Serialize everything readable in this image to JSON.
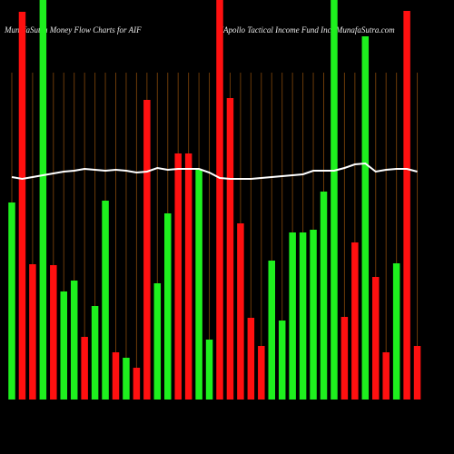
{
  "chart_data": {
    "type": "bar",
    "title": "MunafaSutra  Money Flow  Charts for AIF",
    "subtitle": "(Apollo  Tactical Income  Fund Inc) MunafaSutra.com",
    "categories": [
      null,
      null,
      null,
      null,
      null,
      null,
      null,
      null,
      null,
      null,
      null,
      null,
      null,
      null,
      null,
      null,
      null,
      null,
      null,
      null,
      null,
      null,
      null,
      null,
      null,
      null,
      null,
      null,
      null,
      null,
      null,
      null,
      null,
      null,
      null,
      null,
      null,
      null,
      null,
      null
    ],
    "values": [
      217,
      427,
      149,
      440,
      148,
      119,
      131,
      69,
      103,
      219,
      52,
      46,
      35,
      330,
      128,
      205,
      271,
      271,
      253,
      66,
      440,
      332,
      194,
      90,
      59,
      153,
      87,
      184,
      184,
      187,
      229,
      440,
      91,
      173,
      400,
      135,
      52,
      150,
      428,
      59
    ],
    "colors": [
      "#1ef01e",
      "#ff1010",
      "#ff1010",
      "#1ef01e",
      "#ff1010",
      "#1ef01e",
      "#1ef01e",
      "#ff1010",
      "#1ef01e",
      "#1ef01e",
      "#ff1010",
      "#1ef01e",
      "#ff1010",
      "#ff1010",
      "#1ef01e",
      "#1ef01e",
      "#ff1010",
      "#ff1010",
      "#1ef01e",
      "#1ef01e",
      "#ff1010",
      "#ff1010",
      "#ff1010",
      "#ff1010",
      "#ff1010",
      "#1ef01e",
      "#1ef01e",
      "#1ef01e",
      "#1ef01e",
      "#1ef01e",
      "#1ef01e",
      "#1ef01e",
      "#ff1010",
      "#ff1010",
      "#1ef01e",
      "#ff1010",
      "#ff1010",
      "#1ef01e",
      "#ff1010",
      "#ff1010"
    ],
    "line": {
      "color": "#ffffff",
      "values": [
        245,
        243,
        245,
        247,
        249,
        251,
        252,
        254,
        253,
        252,
        253,
        252,
        250,
        251,
        255,
        253,
        254,
        254,
        254,
        250,
        244,
        243,
        243,
        243,
        244,
        245,
        246,
        247,
        248,
        252,
        252,
        252,
        255,
        259,
        260,
        251,
        253,
        254,
        254,
        251
      ]
    },
    "ylim": [
      0,
      440
    ],
    "grid_color": "#6b3a08"
  }
}
